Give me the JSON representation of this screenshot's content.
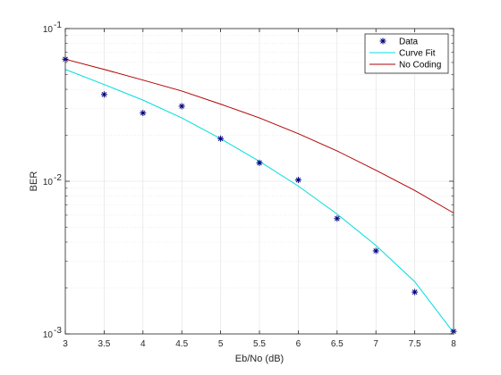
{
  "chart_data": {
    "type": "line",
    "xlabel": "Eb/No (dB)",
    "ylabel": "BER",
    "xlim": [
      3,
      8
    ],
    "ylim": [
      0.001,
      0.1
    ],
    "y_scale": "log",
    "grid": true,
    "minor_grid": true,
    "legend_position": "top-right",
    "x_ticks": [
      {
        "value": 3,
        "label": "3"
      },
      {
        "value": 3.5,
        "label": "3.5"
      },
      {
        "value": 4,
        "label": "4"
      },
      {
        "value": 4.5,
        "label": "4.5"
      },
      {
        "value": 5,
        "label": "5"
      },
      {
        "value": 5.5,
        "label": "5.5"
      },
      {
        "value": 6,
        "label": "6"
      },
      {
        "value": 6.5,
        "label": "6.5"
      },
      {
        "value": 7,
        "label": "7"
      },
      {
        "value": 7.5,
        "label": "7.5"
      },
      {
        "value": 8,
        "label": "8"
      }
    ],
    "y_ticks": [
      {
        "value": 0.001,
        "base": "10",
        "exp": "-3"
      },
      {
        "value": 0.01,
        "base": "10",
        "exp": "-2"
      },
      {
        "value": 0.1,
        "base": "10",
        "exp": "-1"
      }
    ],
    "series": [
      {
        "name": "Data",
        "kind": "scatter",
        "marker": "asterisk",
        "color": "#00007f",
        "x": [
          3,
          3.5,
          4,
          4.5,
          5,
          5.5,
          6,
          6.5,
          7,
          7.5,
          8
        ],
        "y": [
          0.063,
          0.037,
          0.028,
          0.031,
          0.019,
          0.0132,
          0.0102,
          0.0057,
          0.0035,
          0.00188,
          0.00104
        ]
      },
      {
        "name": "Curve Fit",
        "kind": "line",
        "color": "#00dcdc",
        "x": [
          3,
          3.5,
          4,
          4.5,
          5,
          5.5,
          6,
          6.5,
          7,
          7.5,
          8
        ],
        "y": [
          0.054,
          0.043,
          0.034,
          0.026,
          0.019,
          0.0135,
          0.0093,
          0.0061,
          0.0038,
          0.0022,
          0.00102
        ]
      },
      {
        "name": "No Coding",
        "kind": "line",
        "color": "#b00000",
        "x": [
          3,
          3.5,
          4,
          4.5,
          5,
          5.5,
          6,
          6.5,
          7,
          7.5,
          8
        ],
        "y": [
          0.063,
          0.054,
          0.046,
          0.039,
          0.032,
          0.026,
          0.0205,
          0.0158,
          0.0118,
          0.0087,
          0.0062
        ]
      }
    ]
  }
}
